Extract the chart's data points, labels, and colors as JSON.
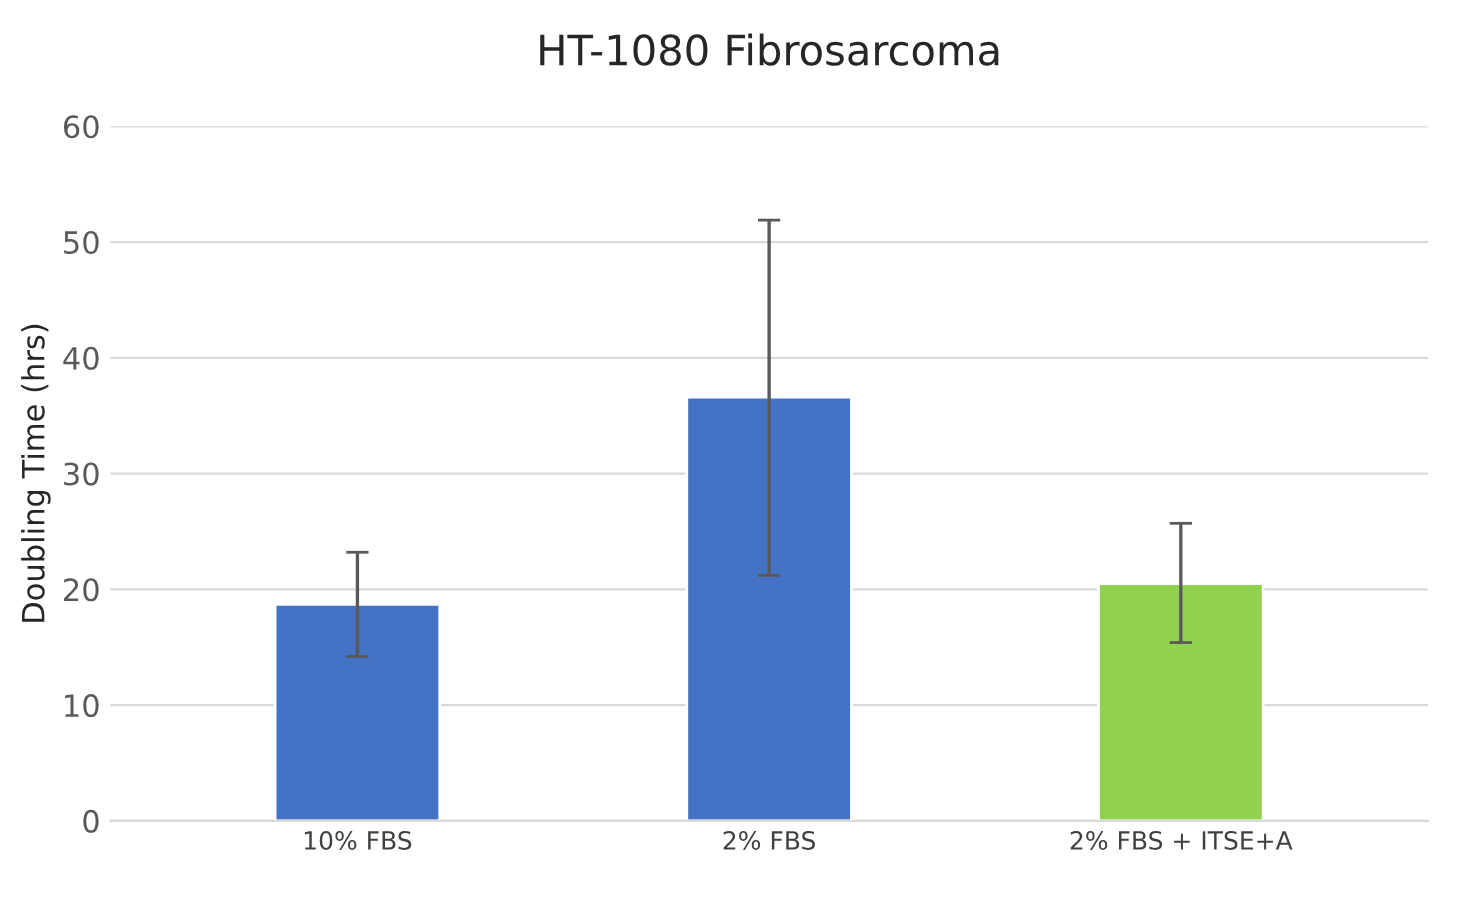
{
  "chart_data": {
    "type": "bar",
    "title": "HT-1080 Fibrosarcoma",
    "ylabel": "Doubling Time (hrs)",
    "categories": [
      "10% FBS",
      "2% FBS",
      "2% FBS + ITSE+A"
    ],
    "values": [
      18.7,
      36.6,
      20.5
    ],
    "colors": [
      "#4472c4",
      "#4472c4",
      "#92d050"
    ],
    "errors": [
      [
        14.2,
        23.2
      ],
      [
        21.2,
        51.9
      ],
      [
        15.4,
        25.7
      ]
    ],
    "ylim": [
      0,
      60
    ],
    "yticks": [
      0,
      10,
      20,
      30,
      40,
      50,
      60
    ],
    "grid": "y",
    "legend": false
  }
}
